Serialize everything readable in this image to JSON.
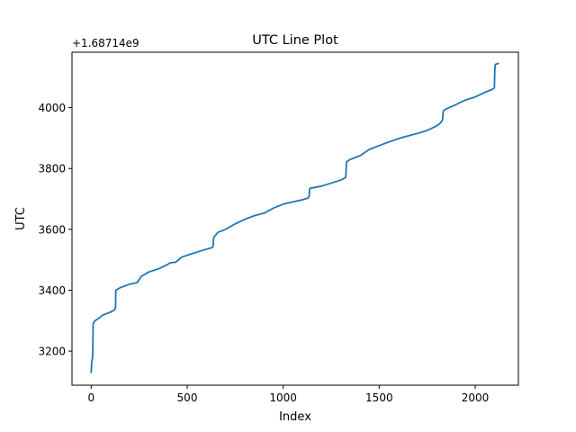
{
  "chart_data": {
    "type": "line",
    "title": "UTC Line Plot",
    "xlabel": "Index",
    "ylabel": "UTC",
    "y_offset_label": "+1.68714e9",
    "xlim": [
      -100,
      2225
    ],
    "ylim": [
      3088,
      4182
    ],
    "x_ticks": [
      0,
      500,
      1000,
      1500,
      2000
    ],
    "x_tick_labels": [
      "0",
      "500",
      "1000",
      "1500",
      "2000"
    ],
    "y_ticks": [
      3200,
      3400,
      3600,
      3800,
      4000
    ],
    "y_tick_labels": [
      "3200",
      "3400",
      "3600",
      "3800",
      "4000"
    ],
    "grid": false,
    "series": [
      {
        "color": "#1f77b4",
        "x": [
          0,
          3,
          5,
          6,
          8,
          10,
          11,
          20,
          40,
          60,
          80,
          100,
          120,
          125,
          127,
          128,
          150,
          200,
          240,
          260,
          300,
          350,
          400,
          410,
          440,
          455,
          470,
          500,
          550,
          600,
          630,
          635,
          637,
          640,
          660,
          700,
          750,
          800,
          850,
          900,
          950,
          1000,
          1050,
          1100,
          1130,
          1135,
          1137,
          1140,
          1200,
          1250,
          1300,
          1325,
          1327,
          1330,
          1350,
          1400,
          1450,
          1500,
          1550,
          1600,
          1650,
          1700,
          1750,
          1800,
          1820,
          1830,
          1833,
          1836,
          1850,
          1900,
          1950,
          2000,
          2050,
          2090,
          2100,
          2102,
          2104,
          2106,
          2120
        ],
        "y": [
          3130,
          3165,
          3168,
          3175,
          3188,
          3285,
          3292,
          3300,
          3308,
          3318,
          3323,
          3328,
          3335,
          3340,
          3345,
          3400,
          3408,
          3420,
          3425,
          3445,
          3460,
          3470,
          3485,
          3490,
          3492,
          3500,
          3508,
          3515,
          3525,
          3535,
          3540,
          3545,
          3570,
          3575,
          3590,
          3600,
          3618,
          3633,
          3645,
          3653,
          3670,
          3683,
          3690,
          3697,
          3703,
          3708,
          3730,
          3735,
          3742,
          3752,
          3762,
          3770,
          3785,
          3822,
          3830,
          3842,
          3863,
          3875,
          3887,
          3898,
          3907,
          3915,
          3925,
          3940,
          3950,
          3960,
          3985,
          3990,
          3996,
          4010,
          4025,
          4035,
          4050,
          4060,
          4065,
          4120,
          4138,
          4142,
          4145
        ]
      }
    ]
  }
}
